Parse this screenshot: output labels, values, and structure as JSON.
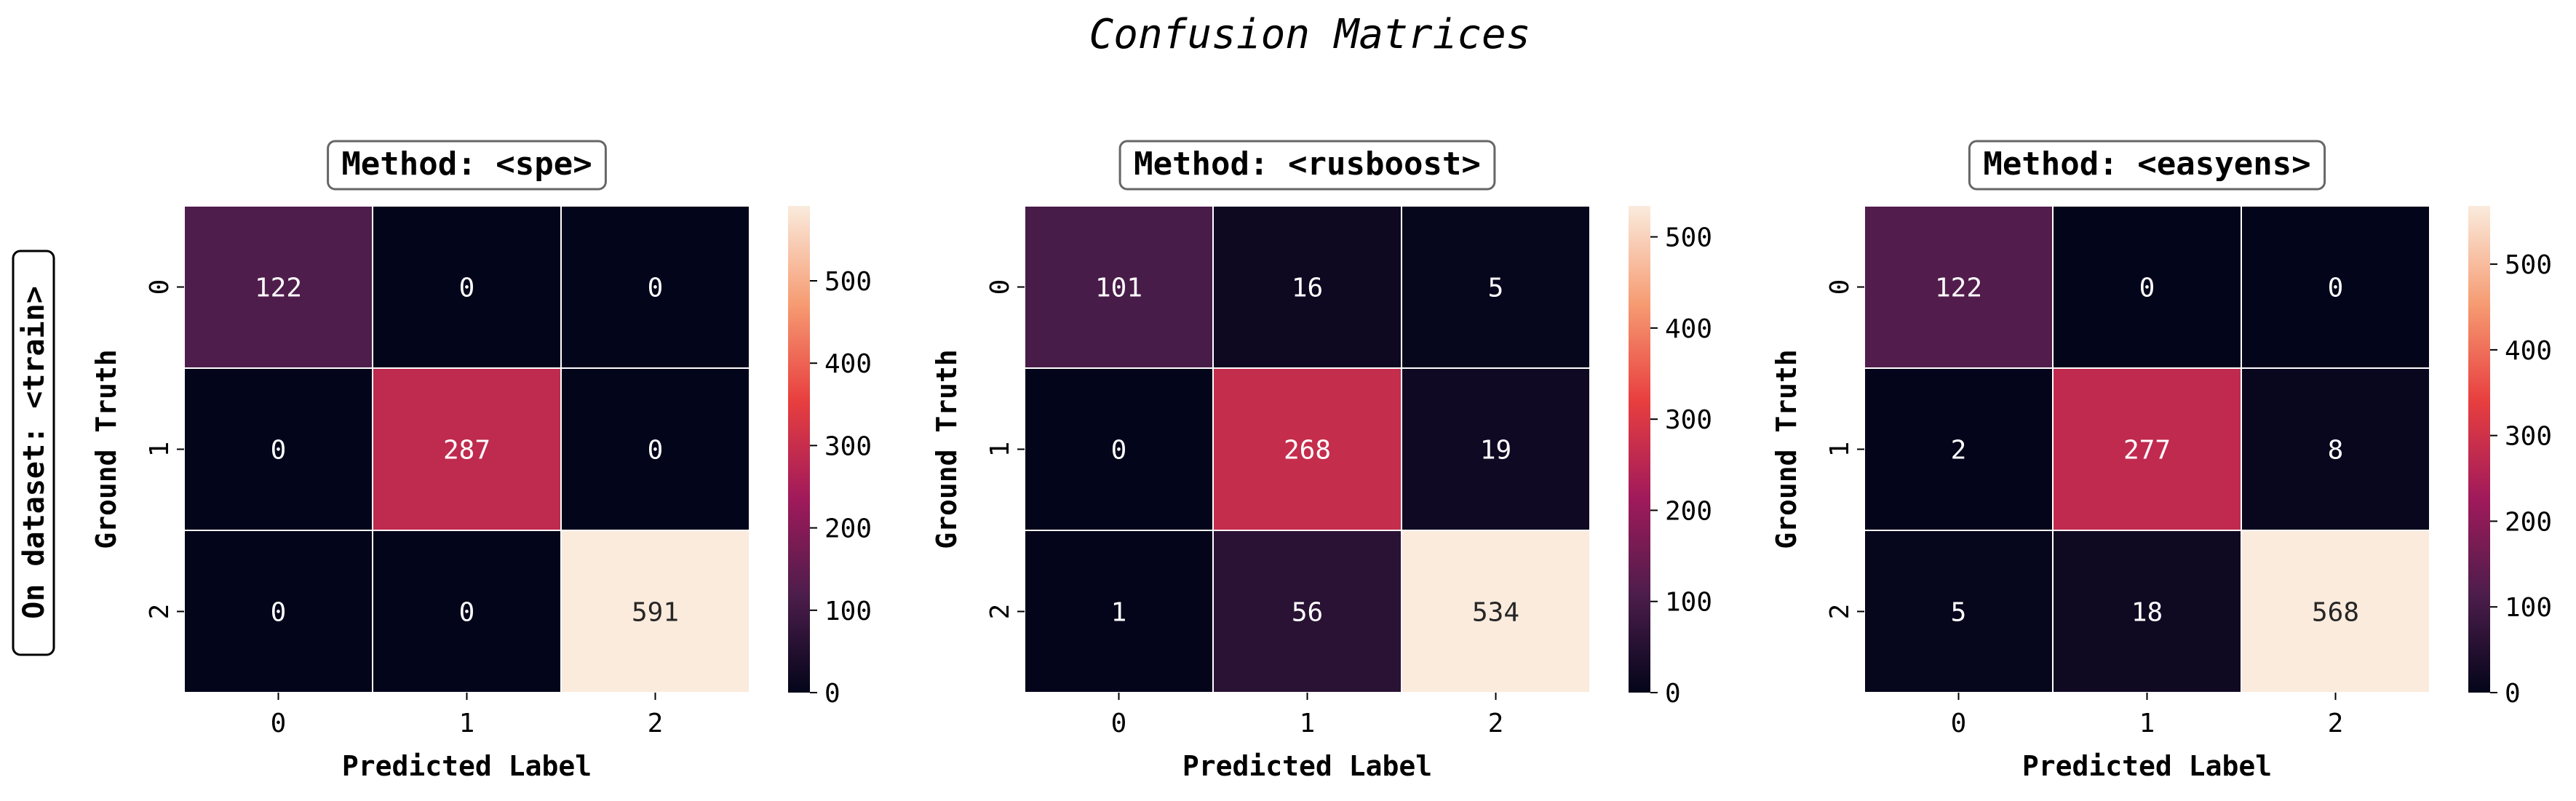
{
  "chart_data": {
    "type": "heatmap",
    "title": "Confusion Matrices",
    "row_label": "On dataset: <train>",
    "xlabel": "Predicted Label",
    "ylabel": "Ground Truth",
    "x_ticks": [
      "0",
      "1",
      "2"
    ],
    "y_ticks": [
      "0",
      "1",
      "2"
    ],
    "colormap": "rocket",
    "colormap_stops": [
      "#03051a",
      "#4c1d4b",
      "#a11a5b",
      "#e83f3f",
      "#f69c73",
      "#faebdd"
    ],
    "cell_border_color": "#ffffff",
    "panels": [
      {
        "title": "Method: <spe>",
        "matrix": [
          [
            122,
            0,
            0
          ],
          [
            0,
            287,
            0
          ],
          [
            0,
            0,
            591
          ]
        ],
        "colorbar_range": [
          0,
          591
        ],
        "colorbar_ticks": [
          0,
          100,
          200,
          300,
          400,
          500
        ]
      },
      {
        "title": "Method: <rusboost>",
        "matrix": [
          [
            101,
            16,
            5
          ],
          [
            0,
            268,
            19
          ],
          [
            1,
            56,
            534
          ]
        ],
        "colorbar_range": [
          0,
          534
        ],
        "colorbar_ticks": [
          0,
          100,
          200,
          300,
          400,
          500
        ]
      },
      {
        "title": "Method: <easyens>",
        "matrix": [
          [
            122,
            0,
            0
          ],
          [
            2,
            277,
            8
          ],
          [
            5,
            18,
            568
          ]
        ],
        "colorbar_range": [
          0,
          568
        ],
        "colorbar_ticks": [
          0,
          100,
          200,
          300,
          400,
          500
        ]
      }
    ]
  }
}
